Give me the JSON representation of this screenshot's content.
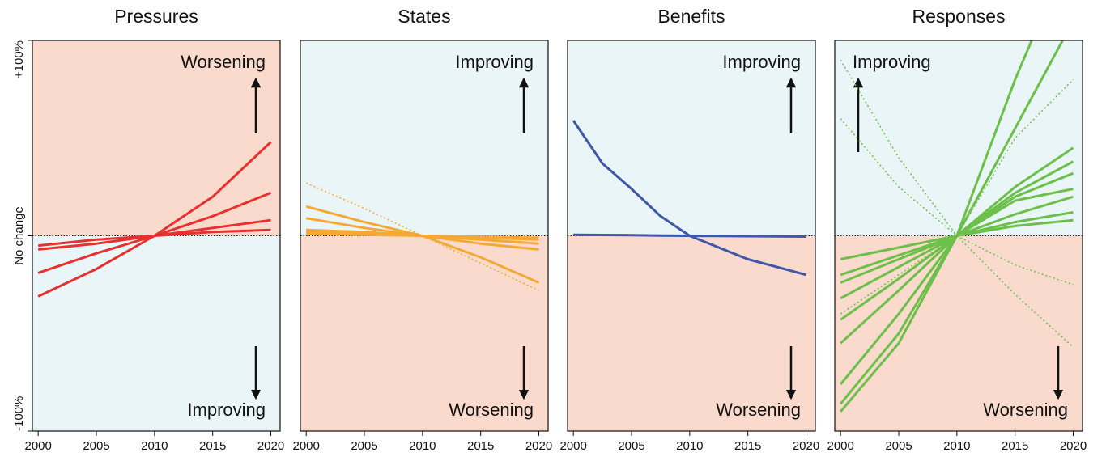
{
  "chart_data": [
    {
      "type": "line",
      "title": "Pressures",
      "top_label": "Worsening",
      "bottom_label": "Improving",
      "annotation_corner": "right",
      "top_fill": "#f9dacd",
      "bottom_fill": "#e9f5f7",
      "reference_line": 0,
      "x": [
        2000,
        2005,
        2010,
        2015,
        2020
      ],
      "xlim": [
        1999.5,
        2020.8
      ],
      "xticks": [
        2000,
        2005,
        2010,
        2015,
        2020
      ],
      "ylim": [
        -100,
        100
      ],
      "yticks": [
        {
          "value": -100,
          "label": "-100%"
        },
        {
          "value": 0,
          "label": "No change"
        },
        {
          "value": 100,
          "label": "+100%"
        }
      ],
      "series": [
        {
          "color": "#e8312f",
          "style": "solid",
          "values": [
            -31,
            -17,
            0,
            20,
            48
          ]
        },
        {
          "color": "#e8312f",
          "style": "solid",
          "values": [
            -19,
            -9,
            0,
            10,
            22
          ]
        },
        {
          "color": "#e8312f",
          "style": "solid",
          "values": [
            -7,
            -4,
            0,
            4,
            8
          ]
        },
        {
          "color": "#e8312f",
          "style": "solid",
          "values": [
            -5,
            -2,
            0,
            2,
            3
          ]
        }
      ]
    },
    {
      "type": "line",
      "title": "States",
      "top_label": "Improving",
      "bottom_label": "Worsening",
      "annotation_corner": "right",
      "top_fill": "#e9f5f7",
      "bottom_fill": "#f9dacd",
      "reference_line": 0,
      "x": [
        2000,
        2005,
        2010,
        2015,
        2020
      ],
      "xlim": [
        1999.5,
        2020.8
      ],
      "xticks": [
        2000,
        2005,
        2010,
        2015,
        2020
      ],
      "ylim": [
        -100,
        100
      ],
      "series": [
        {
          "color": "#f6a834",
          "style": "dotted",
          "values": [
            27,
            14,
            0,
            -14,
            -28
          ]
        },
        {
          "color": "#f6a834",
          "style": "solid",
          "values": [
            15,
            7,
            0,
            -11,
            -24
          ]
        },
        {
          "color": "#f6a834",
          "style": "solid",
          "values": [
            9,
            4,
            0,
            -4,
            -7
          ]
        },
        {
          "color": "#f6a834",
          "style": "solid",
          "values": [
            3,
            2,
            0,
            -2,
            -4
          ]
        },
        {
          "color": "#f6a834",
          "style": "solid",
          "values": [
            2,
            1,
            0,
            -1,
            -2
          ]
        },
        {
          "color": "#f6a834",
          "style": "solid",
          "values": [
            1,
            0.5,
            0,
            -0.5,
            -1
          ]
        }
      ]
    },
    {
      "type": "line",
      "title": "Benefits",
      "top_label": "Improving",
      "bottom_label": "Worsening",
      "annotation_corner": "right",
      "top_fill": "#e9f5f7",
      "bottom_fill": "#f9dacd",
      "reference_line": 0,
      "x": [
        2000,
        2002.5,
        2005,
        2007.5,
        2010,
        2012.5,
        2015,
        2017.5,
        2020
      ],
      "xlim": [
        1999.5,
        2020.8
      ],
      "xticks": [
        2000,
        2005,
        2010,
        2015,
        2020
      ],
      "ylim": [
        -100,
        100
      ],
      "series": [
        {
          "color": "#3f57a8",
          "style": "solid",
          "values": [
            59,
            37,
            24,
            10,
            0,
            -6,
            -12,
            -16,
            -20
          ]
        },
        {
          "color": "#3f57a8",
          "style": "solid",
          "values": [
            0.5,
            0.4,
            0.3,
            0.1,
            0,
            -0.1,
            -0.2,
            -0.3,
            -0.4
          ]
        }
      ]
    },
    {
      "type": "line",
      "title": "Responses",
      "top_label": "Improving",
      "bottom_label": "Worsening",
      "annotation_corner": "left",
      "top_fill": "#e9f5f7",
      "bottom_fill": "#f9dacd",
      "reference_line": 0,
      "x": [
        2000,
        2005,
        2010,
        2015,
        2020
      ],
      "xlim": [
        1999.5,
        2020.8
      ],
      "xticks": [
        2000,
        2005,
        2010,
        2015,
        2020
      ],
      "ylim": [
        -100,
        100
      ],
      "series": [
        {
          "color": "#6cc04a",
          "style": "dotted",
          "values": [
            90,
            40,
            0,
            -30,
            -57
          ]
        },
        {
          "color": "#6cc04a",
          "style": "dotted",
          "values": [
            -40,
            -20,
            0,
            50,
            80
          ]
        },
        {
          "color": "#6cc04a",
          "style": "dotted",
          "values": [
            60,
            25,
            0,
            -15,
            -25
          ]
        },
        {
          "color": "#6cc04a",
          "style": "solid",
          "values": [
            -12,
            -6,
            0,
            5,
            8
          ]
        },
        {
          "color": "#6cc04a",
          "style": "solid",
          "values": [
            -20,
            -10,
            0,
            7,
            12
          ]
        },
        {
          "color": "#6cc04a",
          "style": "solid",
          "values": [
            -24,
            -12,
            0,
            11,
            20
          ]
        },
        {
          "color": "#6cc04a",
          "style": "solid",
          "values": [
            -32,
            -16,
            0,
            18,
            24
          ]
        },
        {
          "color": "#6cc04a",
          "style": "solid",
          "values": [
            -43,
            -22,
            0,
            20,
            32
          ]
        },
        {
          "color": "#6cc04a",
          "style": "solid",
          "values": [
            -55,
            -28,
            0,
            22,
            38
          ]
        },
        {
          "color": "#6cc04a",
          "style": "solid",
          "values": [
            -76,
            -40,
            0,
            25,
            45
          ]
        },
        {
          "color": "#6cc04a",
          "style": "solid",
          "values": [
            -86,
            -50,
            0,
            55,
            110
          ]
        },
        {
          "color": "#6cc04a",
          "style": "solid",
          "values": [
            -90,
            -55,
            0,
            80,
            150
          ]
        }
      ]
    }
  ]
}
